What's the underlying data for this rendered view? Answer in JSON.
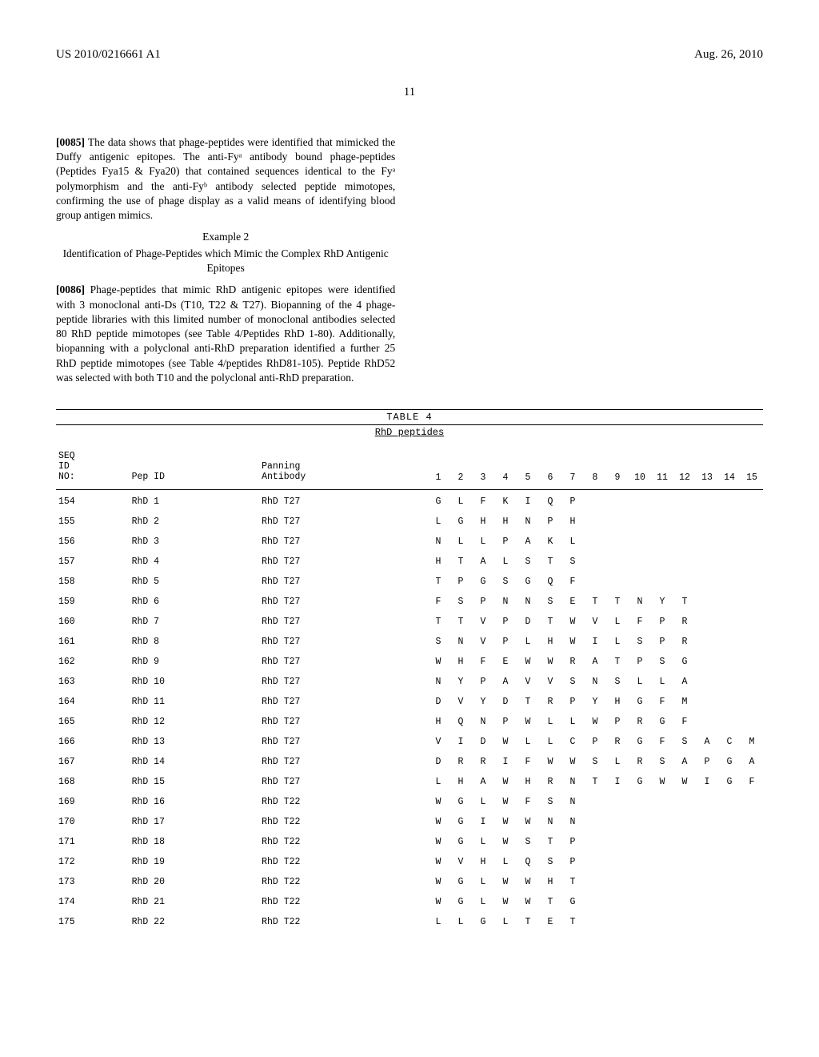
{
  "header": {
    "left": "US 2010/0216661 A1",
    "right": "Aug. 26, 2010"
  },
  "page_number": "11",
  "prose": {
    "p85_num": "[0085]",
    "p85_text": "   The data shows that phage-peptides were identified that mimicked the Duffy antigenic epitopes. The anti-Fyᵃ antibody bound phage-peptides (Peptides Fya15 & Fya20) that contained sequences identical to the Fyᵃ polymorphism and the anti-Fyᵇ antibody selected peptide mimotopes, confirming the use of phage display as a valid means of identifying blood group antigen mimics.",
    "example_label": "Example 2",
    "example_title": "Identification of Phage-Peptides which Mimic the Complex RhD Antigenic Epitopes",
    "p86_num": "[0086]",
    "p86_text": "   Phage-peptides that mimic RhD antigenic epitopes were identified with 3 monoclonal anti-Ds (T10, T22 & T27). Biopanning of the 4 phage-peptide libraries with this limited number of monoclonal antibodies selected 80 RhD peptide mimotopes (see Table 4/Peptides RhD 1-80). Additionally, biopanning with a polyclonal anti-RhD preparation identified a further 25 RhD peptide mimotopes (see Table 4/peptides RhD81-105). Peptide RhD52 was selected with both T10 and the polyclonal anti-RhD preparation."
  },
  "table": {
    "label": "TABLE 4",
    "subtitle": "RhD peptides",
    "head_col1_l1": "SEQ",
    "head_col1_l2": "ID",
    "head_col1_l3": "NO:",
    "head_col2": "Pep ID",
    "head_col3_l1": "Panning",
    "head_col3_l2": "Antibody",
    "positions": [
      "1",
      "2",
      "3",
      "4",
      "5",
      "6",
      "7",
      "8",
      "9",
      "10",
      "11",
      "12",
      "13",
      "14",
      "15"
    ],
    "rows": [
      {
        "seq": "154",
        "pep": "RhD 1",
        "ab": "RhD T27",
        "aa": [
          "G",
          "L",
          "F",
          "K",
          "I",
          "Q",
          "P",
          "",
          "",
          "",
          "",
          "",
          "",
          "",
          ""
        ]
      },
      {
        "seq": "155",
        "pep": "RhD 2",
        "ab": "RhD T27",
        "aa": [
          "L",
          "G",
          "H",
          "H",
          "N",
          "P",
          "H",
          "",
          "",
          "",
          "",
          "",
          "",
          "",
          ""
        ]
      },
      {
        "seq": "156",
        "pep": "RhD 3",
        "ab": "RhD T27",
        "aa": [
          "N",
          "L",
          "L",
          "P",
          "A",
          "K",
          "L",
          "",
          "",
          "",
          "",
          "",
          "",
          "",
          ""
        ]
      },
      {
        "seq": "157",
        "pep": "RhD 4",
        "ab": "RhD T27",
        "aa": [
          "H",
          "T",
          "A",
          "L",
          "S",
          "T",
          "S",
          "",
          "",
          "",
          "",
          "",
          "",
          "",
          ""
        ]
      },
      {
        "seq": "158",
        "pep": "RhD 5",
        "ab": "RhD T27",
        "aa": [
          "T",
          "P",
          "G",
          "S",
          "G",
          "Q",
          "F",
          "",
          "",
          "",
          "",
          "",
          "",
          "",
          ""
        ]
      },
      {
        "seq": "159",
        "pep": "RhD 6",
        "ab": "RhD T27",
        "aa": [
          "F",
          "S",
          "P",
          "N",
          "N",
          "S",
          "E",
          "T",
          "T",
          "N",
          "Y",
          "T",
          "",
          "",
          ""
        ]
      },
      {
        "seq": "160",
        "pep": "RhD 7",
        "ab": "RhD T27",
        "aa": [
          "T",
          "T",
          "V",
          "P",
          "D",
          "T",
          "W",
          "V",
          "L",
          "F",
          "P",
          "R",
          "",
          "",
          ""
        ]
      },
      {
        "seq": "161",
        "pep": "RhD 8",
        "ab": "RhD T27",
        "aa": [
          "S",
          "N",
          "V",
          "P",
          "L",
          "H",
          "W",
          "I",
          "L",
          "S",
          "P",
          "R",
          "",
          "",
          ""
        ]
      },
      {
        "seq": "162",
        "pep": "RhD 9",
        "ab": "RhD T27",
        "aa": [
          "W",
          "H",
          "F",
          "E",
          "W",
          "W",
          "R",
          "A",
          "T",
          "P",
          "S",
          "G",
          "",
          "",
          ""
        ]
      },
      {
        "seq": "163",
        "pep": "RhD 10",
        "ab": "RhD T27",
        "aa": [
          "N",
          "Y",
          "P",
          "A",
          "V",
          "V",
          "S",
          "N",
          "S",
          "L",
          "L",
          "A",
          "",
          "",
          ""
        ]
      },
      {
        "seq": "164",
        "pep": "RhD 11",
        "ab": "RhD T27",
        "aa": [
          "D",
          "V",
          "Y",
          "D",
          "T",
          "R",
          "P",
          "Y",
          "H",
          "G",
          "F",
          "M",
          "",
          "",
          ""
        ]
      },
      {
        "seq": "165",
        "pep": "RhD 12",
        "ab": "RhD T27",
        "aa": [
          "H",
          "Q",
          "N",
          "P",
          "W",
          "L",
          "L",
          "W",
          "P",
          "R",
          "G",
          "F",
          "",
          "",
          ""
        ]
      },
      {
        "seq": "166",
        "pep": "RhD 13",
        "ab": "RhD T27",
        "aa": [
          "V",
          "I",
          "D",
          "W",
          "L",
          "L",
          "C",
          "P",
          "R",
          "G",
          "F",
          "S",
          "A",
          "C",
          "M"
        ]
      },
      {
        "seq": "167",
        "pep": "RhD 14",
        "ab": "RhD T27",
        "aa": [
          "D",
          "R",
          "R",
          "I",
          "F",
          "W",
          "W",
          "S",
          "L",
          "R",
          "S",
          "A",
          "P",
          "G",
          "A"
        ]
      },
      {
        "seq": "168",
        "pep": "RhD 15",
        "ab": "RhD T27",
        "aa": [
          "L",
          "H",
          "A",
          "W",
          "H",
          "R",
          "N",
          "T",
          "I",
          "G",
          "W",
          "W",
          "I",
          "G",
          "F"
        ]
      },
      {
        "seq": "169",
        "pep": "RhD 16",
        "ab": "RhD T22",
        "aa": [
          "W",
          "G",
          "L",
          "W",
          "F",
          "S",
          "N",
          "",
          "",
          "",
          "",
          "",
          "",
          "",
          ""
        ]
      },
      {
        "seq": "170",
        "pep": "RhD 17",
        "ab": "RhD T22",
        "aa": [
          "W",
          "G",
          "I",
          "W",
          "W",
          "N",
          "N",
          "",
          "",
          "",
          "",
          "",
          "",
          "",
          ""
        ]
      },
      {
        "seq": "171",
        "pep": "RhD 18",
        "ab": "RhD T22",
        "aa": [
          "W",
          "G",
          "L",
          "W",
          "S",
          "T",
          "P",
          "",
          "",
          "",
          "",
          "",
          "",
          "",
          ""
        ]
      },
      {
        "seq": "172",
        "pep": "RhD 19",
        "ab": "RhD T22",
        "aa": [
          "W",
          "V",
          "H",
          "L",
          "Q",
          "S",
          "P",
          "",
          "",
          "",
          "",
          "",
          "",
          "",
          ""
        ]
      },
      {
        "seq": "173",
        "pep": "RhD 20",
        "ab": "RhD T22",
        "aa": [
          "W",
          "G",
          "L",
          "W",
          "W",
          "H",
          "T",
          "",
          "",
          "",
          "",
          "",
          "",
          "",
          ""
        ]
      },
      {
        "seq": "174",
        "pep": "RhD 21",
        "ab": "RhD T22",
        "aa": [
          "W",
          "G",
          "L",
          "W",
          "W",
          "T",
          "G",
          "",
          "",
          "",
          "",
          "",
          "",
          "",
          ""
        ]
      },
      {
        "seq": "175",
        "pep": "RhD 22",
        "ab": "RhD T22",
        "aa": [
          "L",
          "L",
          "G",
          "L",
          "T",
          "E",
          "T",
          "",
          "",
          "",
          "",
          "",
          "",
          "",
          ""
        ]
      }
    ]
  }
}
